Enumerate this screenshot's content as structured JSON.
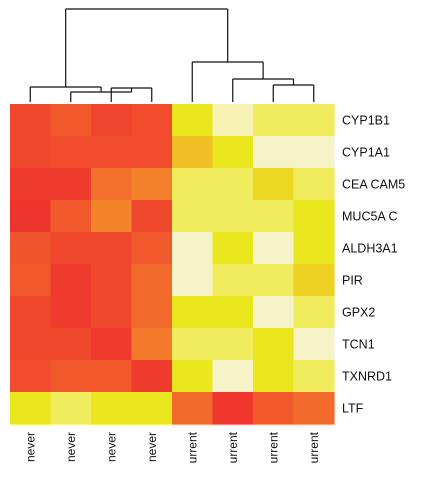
{
  "chart_data": {
    "type": "heatmap",
    "rows": [
      "CYP1B1",
      "CYP1A1",
      "CEA CAM5",
      "MUC5A C",
      "ALDH3A1",
      "PIR",
      "GPX2",
      "TCN1",
      "TXNRD1",
      "LTF"
    ],
    "columns": [
      "never",
      "never",
      "never",
      "never",
      "current",
      "current",
      "current",
      "current"
    ],
    "column_label_visible": [
      "never",
      "never",
      "never",
      "never",
      "urrent",
      "urrent",
      "urrent",
      "urrent"
    ],
    "values": [
      [
        0.12,
        0.2,
        0.1,
        0.14,
        0.8,
        0.97,
        0.93,
        0.93
      ],
      [
        0.12,
        0.14,
        0.14,
        0.14,
        0.62,
        0.9,
        0.98,
        0.98
      ],
      [
        0.06,
        0.06,
        0.3,
        0.38,
        0.93,
        0.93,
        0.7,
        0.93
      ],
      [
        0.03,
        0.2,
        0.4,
        0.12,
        0.93,
        0.93,
        0.93,
        0.9
      ],
      [
        0.18,
        0.12,
        0.12,
        0.2,
        0.98,
        0.9,
        0.98,
        0.9
      ],
      [
        0.2,
        0.06,
        0.12,
        0.28,
        0.98,
        0.93,
        0.93,
        0.68
      ],
      [
        0.12,
        0.06,
        0.12,
        0.28,
        0.9,
        0.9,
        0.98,
        0.93
      ],
      [
        0.12,
        0.12,
        0.06,
        0.35,
        0.93,
        0.93,
        0.9,
        0.98
      ],
      [
        0.14,
        0.2,
        0.2,
        0.06,
        0.9,
        0.98,
        0.9,
        0.93
      ],
      [
        0.86,
        0.93,
        0.86,
        0.86,
        0.28,
        0.04,
        0.2,
        0.28
      ]
    ],
    "color_scale": {
      "low": "#ee2e2e",
      "mid": "#f59a2a",
      "high": "#f7f3c8",
      "high_saturated": "#ebe71f"
    },
    "column_dendrogram": {
      "clusters": [
        [
          "never",
          "never",
          "never",
          "never"
        ],
        [
          "current",
          "current",
          "current",
          "current"
        ]
      ]
    },
    "legend": "none",
    "grid": false
  }
}
